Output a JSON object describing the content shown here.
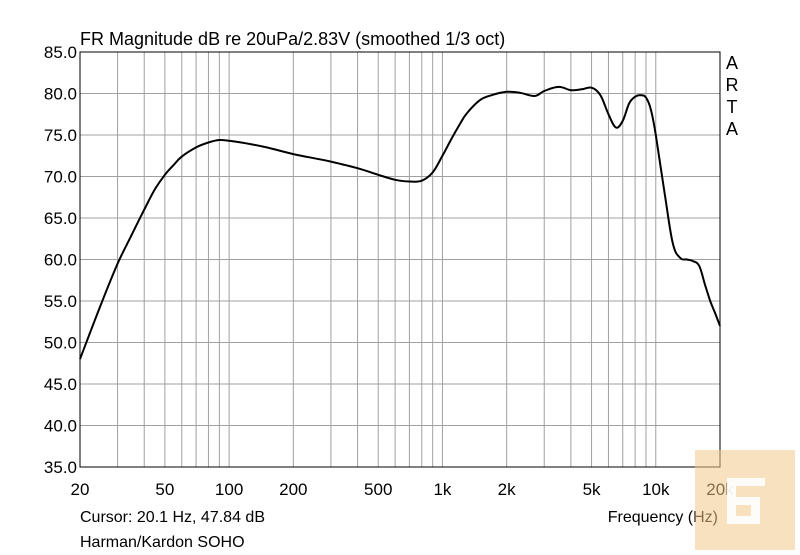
{
  "chart_data": {
    "type": "line",
    "title": "FR Magnitude dB re 20uPa/2.83V (smoothed 1/3 oct)",
    "xlabel": "Frequency (Hz)",
    "ylabel": "",
    "x_scale": "log",
    "xlim": [
      20,
      20000
    ],
    "ylim": [
      35,
      85
    ],
    "grid": true,
    "y_ticks": [
      "35.0",
      "40.0",
      "45.0",
      "50.0",
      "55.0",
      "60.0",
      "65.0",
      "70.0",
      "75.0",
      "80.0",
      "85.0"
    ],
    "x_ticks": [
      {
        "value": 20,
        "label": "20"
      },
      {
        "value": 50,
        "label": "50"
      },
      {
        "value": 100,
        "label": "100"
      },
      {
        "value": 200,
        "label": "200"
      },
      {
        "value": 500,
        "label": "500"
      },
      {
        "value": 1000,
        "label": "1k"
      },
      {
        "value": 2000,
        "label": "2k"
      },
      {
        "value": 5000,
        "label": "5k"
      },
      {
        "value": 10000,
        "label": "10k"
      },
      {
        "value": 20000,
        "label": "20k"
      }
    ],
    "series": [
      {
        "color": "#000000",
        "x": [
          20,
          25,
          30,
          35,
          40,
          45,
          50,
          55,
          60,
          70,
          80,
          90,
          100,
          120,
          150,
          200,
          250,
          300,
          400,
          500,
          600,
          700,
          800,
          900,
          1000,
          1100,
          1200,
          1300,
          1500,
          1700,
          2000,
          2300,
          2700,
          3000,
          3500,
          4000,
          4500,
          5000,
          5500,
          6000,
          6500,
          7000,
          7500,
          8000,
          8500,
          9000,
          9500,
          10000,
          11000,
          12000,
          13000,
          14000,
          15000,
          16000,
          17000,
          18000,
          19000,
          20000
        ],
        "y": [
          48.0,
          54.5,
          59.5,
          63.0,
          66.0,
          68.5,
          70.2,
          71.4,
          72.4,
          73.5,
          74.1,
          74.4,
          74.3,
          74.0,
          73.5,
          72.7,
          72.2,
          71.8,
          71.0,
          70.2,
          69.6,
          69.4,
          69.5,
          70.5,
          72.5,
          74.5,
          76.2,
          77.6,
          79.2,
          79.8,
          80.2,
          80.1,
          79.7,
          80.3,
          80.8,
          80.4,
          80.5,
          80.7,
          79.8,
          77.5,
          75.9,
          76.7,
          78.8,
          79.6,
          79.8,
          79.5,
          78.0,
          75.0,
          68.0,
          62.0,
          60.2,
          60.0,
          59.8,
          59.2,
          57.0,
          55.0,
          53.5,
          52.0
        ]
      }
    ]
  },
  "cursor_readout": "Cursor: 20.1 Hz, 47.84 dB",
  "device_name": "Harman/Kardon SOHO",
  "brand_letters": [
    "A",
    "R",
    "T",
    "A"
  ],
  "colors": {
    "background": "#ffffff",
    "grid": "#a0a0a0",
    "axis": "#000000",
    "curve": "#000000",
    "watermark_bg": "#f2c98a"
  }
}
